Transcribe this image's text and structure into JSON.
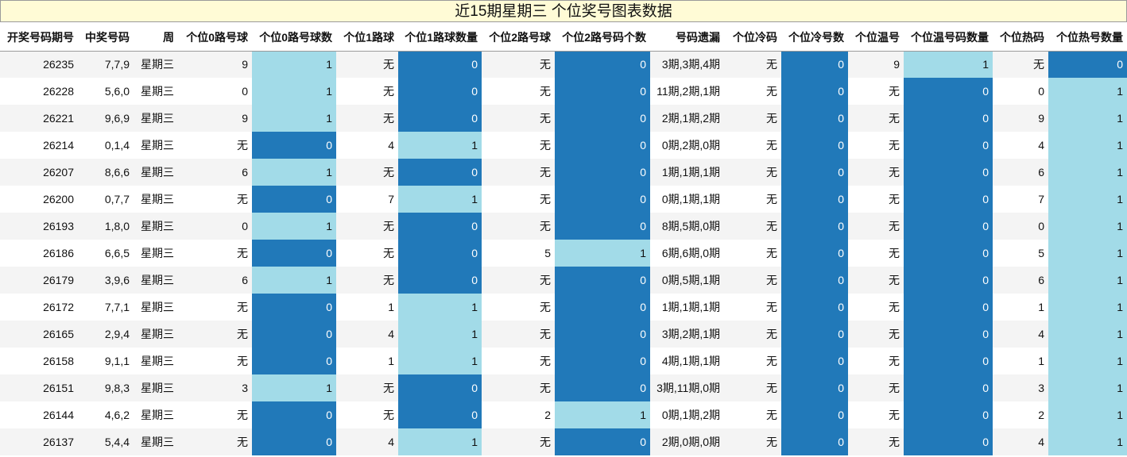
{
  "title": "近15期星期三 个位奖号图表数据",
  "columns": [
    "开奖号码期号",
    "中奖号码",
    "周",
    "个位0路号球",
    "个位0路号球数",
    "个位1路球",
    "个位1路球数量",
    "个位2路号球",
    "个位2路号码个数",
    "号码遗漏",
    "个位冷码",
    "个位冷号数",
    "个位温号",
    "个位温号码数量",
    "个位热码",
    "个位热号数量"
  ],
  "rows": [
    [
      "26235",
      "7,7,9",
      "星期三",
      "9",
      "1",
      "无",
      "0",
      "无",
      "0",
      "3期,3期,4期",
      "无",
      "0",
      "9",
      "1",
      "无",
      "0"
    ],
    [
      "26228",
      "5,6,0",
      "星期三",
      "0",
      "1",
      "无",
      "0",
      "无",
      "0",
      "11期,2期,1期",
      "无",
      "0",
      "无",
      "0",
      "0",
      "1"
    ],
    [
      "26221",
      "9,6,9",
      "星期三",
      "9",
      "1",
      "无",
      "0",
      "无",
      "0",
      "2期,1期,2期",
      "无",
      "0",
      "无",
      "0",
      "9",
      "1"
    ],
    [
      "26214",
      "0,1,4",
      "星期三",
      "无",
      "0",
      "4",
      "1",
      "无",
      "0",
      "0期,2期,0期",
      "无",
      "0",
      "无",
      "0",
      "4",
      "1"
    ],
    [
      "26207",
      "8,6,6",
      "星期三",
      "6",
      "1",
      "无",
      "0",
      "无",
      "0",
      "1期,1期,1期",
      "无",
      "0",
      "无",
      "0",
      "6",
      "1"
    ],
    [
      "26200",
      "0,7,7",
      "星期三",
      "无",
      "0",
      "7",
      "1",
      "无",
      "0",
      "0期,1期,1期",
      "无",
      "0",
      "无",
      "0",
      "7",
      "1"
    ],
    [
      "26193",
      "1,8,0",
      "星期三",
      "0",
      "1",
      "无",
      "0",
      "无",
      "0",
      "8期,5期,0期",
      "无",
      "0",
      "无",
      "0",
      "0",
      "1"
    ],
    [
      "26186",
      "6,6,5",
      "星期三",
      "无",
      "0",
      "无",
      "0",
      "5",
      "1",
      "6期,6期,0期",
      "无",
      "0",
      "无",
      "0",
      "5",
      "1"
    ],
    [
      "26179",
      "3,9,6",
      "星期三",
      "6",
      "1",
      "无",
      "0",
      "无",
      "0",
      "0期,5期,1期",
      "无",
      "0",
      "无",
      "0",
      "6",
      "1"
    ],
    [
      "26172",
      "7,7,1",
      "星期三",
      "无",
      "0",
      "1",
      "1",
      "无",
      "0",
      "1期,1期,1期",
      "无",
      "0",
      "无",
      "0",
      "1",
      "1"
    ],
    [
      "26165",
      "2,9,4",
      "星期三",
      "无",
      "0",
      "4",
      "1",
      "无",
      "0",
      "3期,2期,1期",
      "无",
      "0",
      "无",
      "0",
      "4",
      "1"
    ],
    [
      "26158",
      "9,1,1",
      "星期三",
      "无",
      "0",
      "1",
      "1",
      "无",
      "0",
      "4期,1期,1期",
      "无",
      "0",
      "无",
      "0",
      "1",
      "1"
    ],
    [
      "26151",
      "9,8,3",
      "星期三",
      "3",
      "1",
      "无",
      "0",
      "无",
      "0",
      "3期,11期,0期",
      "无",
      "0",
      "无",
      "0",
      "3",
      "1"
    ],
    [
      "26144",
      "4,6,2",
      "星期三",
      "无",
      "0",
      "无",
      "0",
      "2",
      "1",
      "0期,1期,2期",
      "无",
      "0",
      "无",
      "0",
      "2",
      "1"
    ],
    [
      "26137",
      "5,4,4",
      "星期三",
      "无",
      "0",
      "4",
      "1",
      "无",
      "0",
      "2期,0期,0期",
      "无",
      "0",
      "无",
      "0",
      "4",
      "1"
    ]
  ],
  "colors": {
    "title_bg": "#fffbd6",
    "count_zero": "#2179b9",
    "count_one": "#a2dbe8",
    "row_alt": "#f4f4f4"
  }
}
